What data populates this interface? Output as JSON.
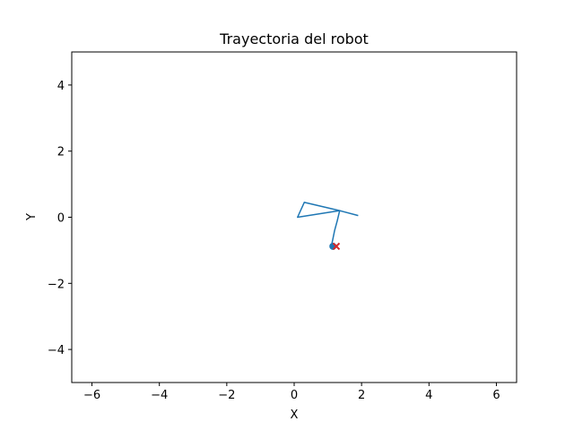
{
  "chart_data": {
    "type": "line",
    "title": "Trayectoria del robot",
    "xlabel": "X",
    "ylabel": "Y",
    "xlim": [
      -6.6,
      6.6
    ],
    "ylim": [
      -5,
      5
    ],
    "xticks": [
      -6,
      -4,
      -2,
      0,
      2,
      4,
      6
    ],
    "yticks": [
      -4,
      -2,
      0,
      2,
      4
    ],
    "xtick_labels": [
      "−6",
      "−4",
      "−2",
      "0",
      "2",
      "4",
      "6"
    ],
    "ytick_labels": [
      "−4",
      "−2",
      "0",
      "2",
      "4"
    ],
    "grid": false,
    "series": [
      {
        "type": "line",
        "color": "#1f77b4",
        "x": [
          1.1,
          1.2,
          1.28,
          1.35,
          0.1,
          0.3,
          1.35,
          1.9
        ],
        "y": [
          -0.9,
          -0.4,
          -0.1,
          0.2,
          0.0,
          0.45,
          0.2,
          0.05
        ]
      }
    ],
    "markers": [
      {
        "kind": "start",
        "shape": "circle",
        "color": "#1f77b4",
        "x": 1.15,
        "y": -0.88
      },
      {
        "kind": "goal",
        "shape": "x",
        "color": "#d62728",
        "x": 1.25,
        "y": -0.88
      }
    ]
  }
}
